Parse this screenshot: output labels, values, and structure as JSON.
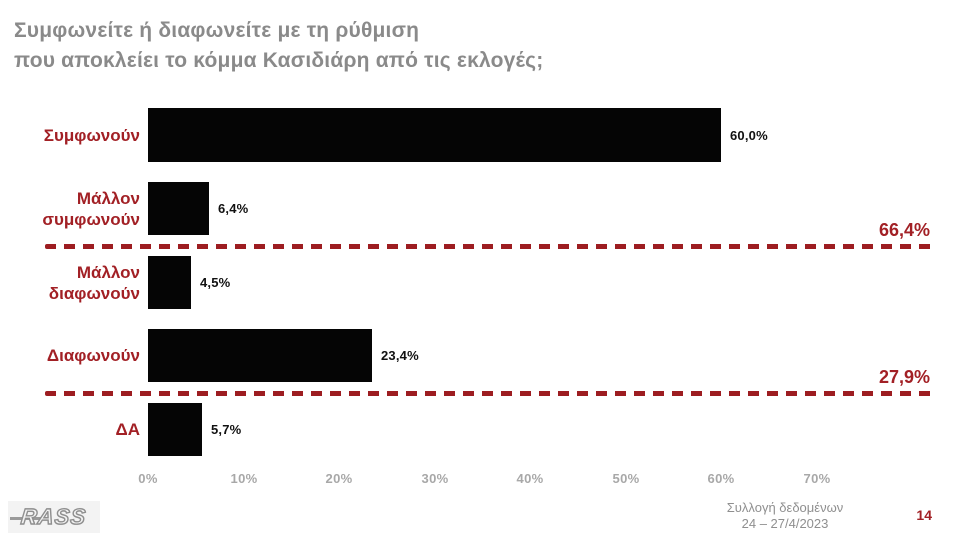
{
  "page": {
    "title_line1": "Συμφωνείτε ή διαφωνείτε με τη ρύθμιση",
    "title_line2": "που αποκλείει το κόμμα Κασιδιάρη από τις εκλογές;",
    "page_number": "14"
  },
  "chart_data": {
    "type": "bar",
    "orientation": "horizontal",
    "title": "Συμφωνείτε ή διαφωνείτε με τη ρύθμιση που αποκλείει το κόμμα Κασιδιάρη από τις εκλογές;",
    "categories": [
      "Συμφωνούν",
      "Μάλλον συμφωνούν",
      "Μάλλον διαφωνούν",
      "Διαφωνούν",
      "ΔΑ"
    ],
    "values": [
      60.0,
      6.4,
      4.5,
      23.4,
      5.7
    ],
    "value_labels": [
      "60,0%",
      "6,4%",
      "4,5%",
      "23,4%",
      "5,7%"
    ],
    "xlim": [
      0,
      70
    ],
    "x_tick_values": [
      0,
      10,
      20,
      30,
      40,
      50,
      60,
      70
    ],
    "x_tick_labels": [
      "0%",
      "10%",
      "20%",
      "30%",
      "40%",
      "50%",
      "60%",
      "70%"
    ],
    "bar_color": "#050505",
    "grid": false,
    "legend": false,
    "group_totals": [
      {
        "label": "66,4%",
        "after_category_index": 1
      },
      {
        "label": "27,9%",
        "after_category_index": 3
      }
    ]
  },
  "footer": {
    "logo_text": "RASS",
    "source_line1": "Συλλογή δεδομένων",
    "source_line2": "24 – 27/4/2023"
  },
  "colors": {
    "accent_red": "#a22025",
    "dash_red": "#9d1d21",
    "bar_black": "#050505",
    "title_gray": "#8a8a8a",
    "tick_gray": "#a8a8a8"
  }
}
